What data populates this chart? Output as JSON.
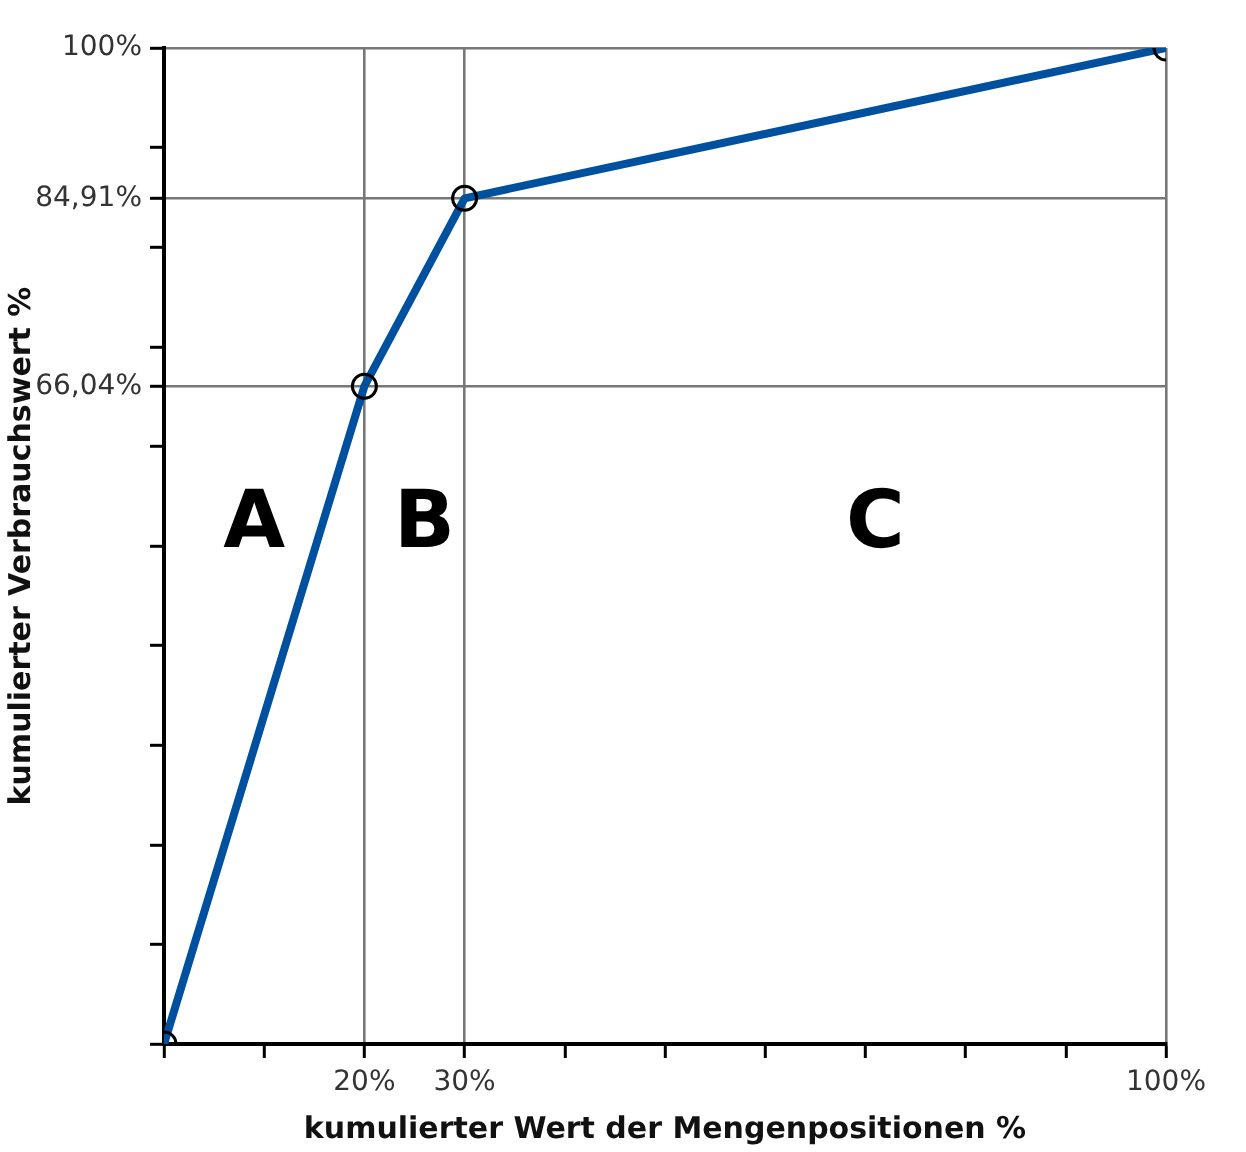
{
  "chart_data": {
    "type": "line",
    "xlabel": "kumulierter Wert der Mengenpositionen %",
    "ylabel": "kumulierter Verbrauchswert %",
    "x": [
      0,
      20,
      30,
      100
    ],
    "series": [
      {
        "color": "#0050a0",
        "values": [
          0,
          66.04,
          84.91,
          100
        ]
      }
    ],
    "xlim": [
      0,
      100
    ],
    "xticks": [
      {
        "value": 0,
        "label": null
      },
      {
        "value": 10,
        "label": null
      },
      {
        "value": 20,
        "label": "20%"
      },
      {
        "value": 30,
        "label": "30%"
      },
      {
        "value": 40,
        "label": null
      },
      {
        "value": 50,
        "label": null
      },
      {
        "value": 60,
        "label": null
      },
      {
        "value": 70,
        "label": null
      },
      {
        "value": 80,
        "label": null
      },
      {
        "value": 90,
        "label": null
      },
      {
        "value": 100,
        "label": "100%"
      }
    ],
    "ylim": [
      0,
      100
    ],
    "yticks": [
      {
        "value": 0,
        "label": null
      },
      {
        "value": 10,
        "label": null
      },
      {
        "value": 20,
        "label": null
      },
      {
        "value": 30,
        "label": null
      },
      {
        "value": 40,
        "label": null
      },
      {
        "value": 50,
        "label": null
      },
      {
        "value": 60,
        "label": null
      },
      {
        "value": 66.04,
        "label": "66,04%"
      },
      {
        "value": 70,
        "label": null
      },
      {
        "value": 80,
        "label": null
      },
      {
        "value": 84.91,
        "label": "84,91%"
      },
      {
        "value": 90,
        "label": null
      },
      {
        "value": 100,
        "label": "100%"
      }
    ],
    "grid": true,
    "marker": "circle",
    "line_style": "solid",
    "legend": false,
    "annotations": [
      "A",
      "B",
      "C"
    ]
  }
}
